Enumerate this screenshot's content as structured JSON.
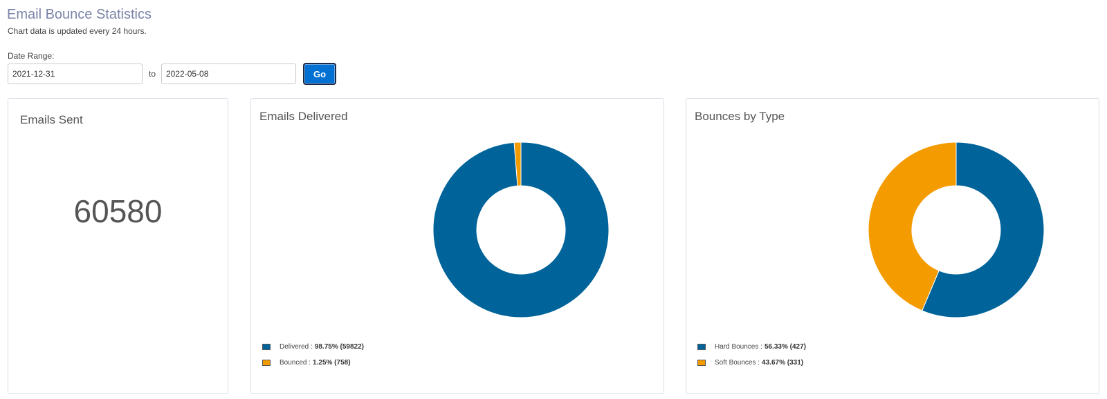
{
  "header": {
    "title": "Email Bounce Statistics",
    "subtitle": "Chart data is updated every 24 hours."
  },
  "filters": {
    "date_range_label": "Date Range:",
    "from_value": "2021-12-31",
    "to_label": "to",
    "to_value": "2022-05-08",
    "go_label": "Go"
  },
  "colors": {
    "blue": "#006399",
    "orange": "#f49b00",
    "button": "#0070d2"
  },
  "cards": {
    "sent": {
      "title": "Emails Sent",
      "value": "60580"
    },
    "delivered": {
      "title": "Emails Delivered",
      "legend": [
        {
          "label": "Delivered :",
          "value": "98.75% (59822)",
          "color": "#006399"
        },
        {
          "label": "Bounced :",
          "value": "1.25% (758)",
          "color": "#f49b00"
        }
      ]
    },
    "bounces": {
      "title": "Bounces by Type",
      "legend": [
        {
          "label": "Hard Bounces :",
          "value": "56.33% (427)",
          "color": "#006399"
        },
        {
          "label": "Soft Bounces :",
          "value": "43.67% (331)",
          "color": "#f49b00"
        }
      ]
    }
  },
  "chart_data": [
    {
      "type": "pie",
      "title": "Emails Delivered",
      "categories": [
        "Delivered",
        "Bounced"
      ],
      "values": [
        59822,
        758
      ],
      "percentages": [
        98.75,
        1.25
      ],
      "colors": [
        "#006399",
        "#f49b00"
      ],
      "legend": "bottom-left"
    },
    {
      "type": "pie",
      "title": "Bounces by Type",
      "categories": [
        "Hard Bounces",
        "Soft Bounces"
      ],
      "values": [
        427,
        331
      ],
      "percentages": [
        56.33,
        43.67
      ],
      "colors": [
        "#006399",
        "#f49b00"
      ],
      "legend": "bottom-left"
    }
  ]
}
